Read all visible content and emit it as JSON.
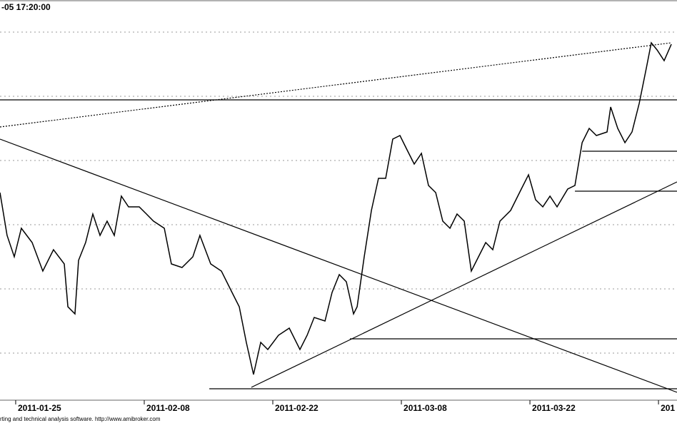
{
  "chart_data": {
    "type": "line",
    "title": "-05 17:20:00",
    "footer": "rting and technical analysis software. http://www.amibroker.com",
    "xlim": [
      -1.22,
      51.44
    ],
    "ylim": [
      0,
      112
    ],
    "xticks": [
      {
        "value": 0,
        "label": "2011-01-25"
      },
      {
        "value": 10,
        "label": "2011-02-08"
      },
      {
        "value": 20,
        "label": "2011-02-22"
      },
      {
        "value": 30,
        "label": "2011-03-08"
      },
      {
        "value": 40,
        "label": "2011-03-22"
      },
      {
        "value": 50,
        "label": "201"
      }
    ],
    "yticks": [
      13,
      31,
      49,
      67,
      85,
      103
    ],
    "grid": true,
    "series": [
      {
        "color": "#000000",
        "x": [
          -1.22,
          -0.67,
          -0.11,
          0.44,
          1.28,
          2.11,
          2.94,
          3.78,
          4.06,
          4.61,
          4.89,
          5.44,
          6,
          6.56,
          7.11,
          7.67,
          8.22,
          8.78,
          9.61,
          10.17,
          10.72,
          11.56,
          12.11,
          12.94,
          13.78,
          14.33,
          15.17,
          16,
          16.83,
          17.39,
          17.94,
          18.5,
          19.06,
          19.61,
          20.44,
          21.28,
          22.11,
          22.67,
          23.22,
          24.06,
          24.61,
          25.17,
          25.72,
          26.28,
          26.56,
          27.11,
          27.67,
          28.22,
          28.78,
          29.33,
          29.89,
          30.44,
          31,
          31.56,
          32.11,
          32.67,
          33.22,
          33.78,
          34.33,
          34.89,
          35.44,
          36,
          36.56,
          37.11,
          37.67,
          38.5,
          39.33,
          39.89,
          40.44,
          41,
          41.56,
          42.11,
          42.94,
          43.5,
          44.06,
          44.61,
          45.17,
          46,
          46.28,
          46.83,
          47.39,
          47.94,
          48.5,
          49.06,
          49.44,
          49.89,
          50.44,
          51
        ],
        "values": [
          58,
          46,
          40,
          48,
          44,
          36,
          42,
          38,
          26,
          24,
          39,
          44,
          52,
          46,
          50,
          46,
          57,
          54,
          54,
          52,
          50,
          48,
          38,
          37,
          40,
          46,
          38,
          36,
          30,
          26,
          16,
          7,
          16,
          14,
          18,
          20,
          14,
          18,
          23,
          22,
          30,
          35,
          33,
          24,
          26,
          40,
          53,
          62,
          62,
          73,
          74,
          70,
          66,
          69,
          60,
          58,
          50,
          48,
          52,
          50,
          36,
          40,
          44,
          42,
          50,
          53,
          59,
          63,
          56,
          54,
          57,
          54,
          59,
          60,
          72,
          76,
          74,
          75,
          82,
          76,
          72,
          75,
          83,
          93,
          100,
          98,
          95,
          99.6
        ]
      }
    ],
    "lines": [
      {
        "x": [
          -1.22,
          51
        ],
        "y": [
          76.4,
          100
        ],
        "style": "dashed"
      },
      {
        "x": [
          -1.22,
          51.44
        ],
        "y": [
          84,
          84
        ],
        "style": "solid"
      },
      {
        "x": [
          -1.22,
          51.44
        ],
        "y": [
          73,
          2
        ],
        "style": "solid"
      },
      {
        "x": [
          18.33,
          51.44
        ],
        "y": [
          3.4,
          61
        ],
        "style": "solid"
      },
      {
        "x": [
          15.06,
          51.44
        ],
        "y": [
          3,
          3
        ],
        "style": "solid"
      },
      {
        "x": [
          26,
          51.44
        ],
        "y": [
          17,
          17
        ],
        "style": "solid"
      },
      {
        "x": [
          43.5,
          51.44
        ],
        "y": [
          58.4,
          58.4
        ],
        "style": "solid"
      },
      {
        "x": [
          44.06,
          51.44
        ],
        "y": [
          69.6,
          69.6
        ],
        "style": "solid"
      }
    ]
  }
}
